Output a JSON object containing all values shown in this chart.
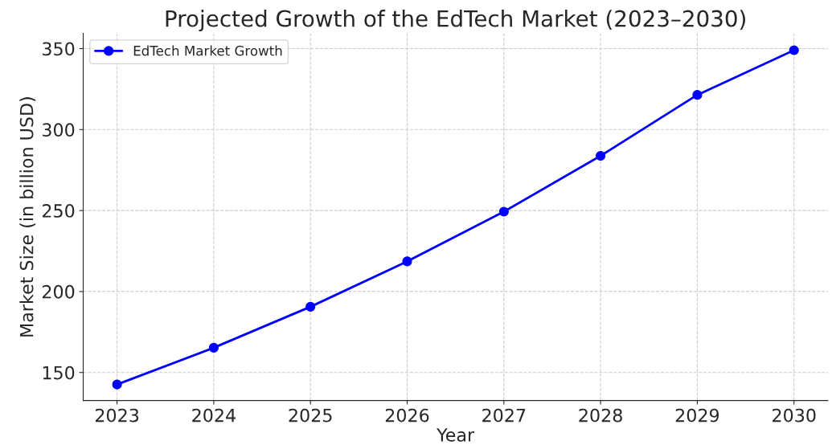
{
  "chart_data": {
    "type": "line",
    "title": "Projected Growth of the EdTech Market (2023–2030)",
    "xlabel": "Year",
    "ylabel": "Market Size (in billion USD)",
    "x": [
      2023,
      2024,
      2025,
      2026,
      2027,
      2028,
      2029,
      2030
    ],
    "series": [
      {
        "name": "EdTech Market Growth",
        "color": "#0000ff",
        "values": [
          142.6,
          165.3,
          190.6,
          218.6,
          249.3,
          283.8,
          321.4,
          349.0
        ]
      }
    ],
    "xlim": [
      2022.65,
      2030.35
    ],
    "xticks": [
      2023,
      2024,
      2025,
      2026,
      2027,
      2028,
      2029,
      2030
    ],
    "ylim": [
      132.7,
      359.4
    ],
    "yticks": [
      150,
      200,
      250,
      300,
      350
    ],
    "grid": true,
    "legend": "top left",
    "marker": "circle",
    "line_style": "solid"
  }
}
